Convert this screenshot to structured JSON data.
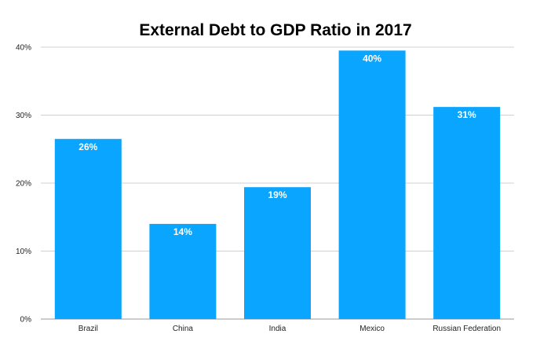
{
  "chart_data": {
    "type": "bar",
    "title": "External Debt to GDP Ratio in 2017",
    "xlabel": "",
    "ylabel": "",
    "categories": [
      "Brazil",
      "China",
      "India",
      "Mexico",
      "Russian Federation"
    ],
    "values": [
      26.5,
      14.0,
      19.4,
      39.5,
      31.2
    ],
    "data_labels": [
      "26%",
      "14%",
      "19%",
      "40%",
      "31%"
    ],
    "ylim": [
      0,
      40
    ],
    "yticks": [
      0,
      10,
      20,
      30,
      40
    ],
    "ytick_labels": [
      "0%",
      "10%",
      "20%",
      "30%",
      "40%"
    ],
    "grid": true,
    "legend": "none",
    "colors": {
      "bar": "#0aa5ff",
      "grid": "#d0d0d0",
      "axis": "#999999"
    }
  }
}
